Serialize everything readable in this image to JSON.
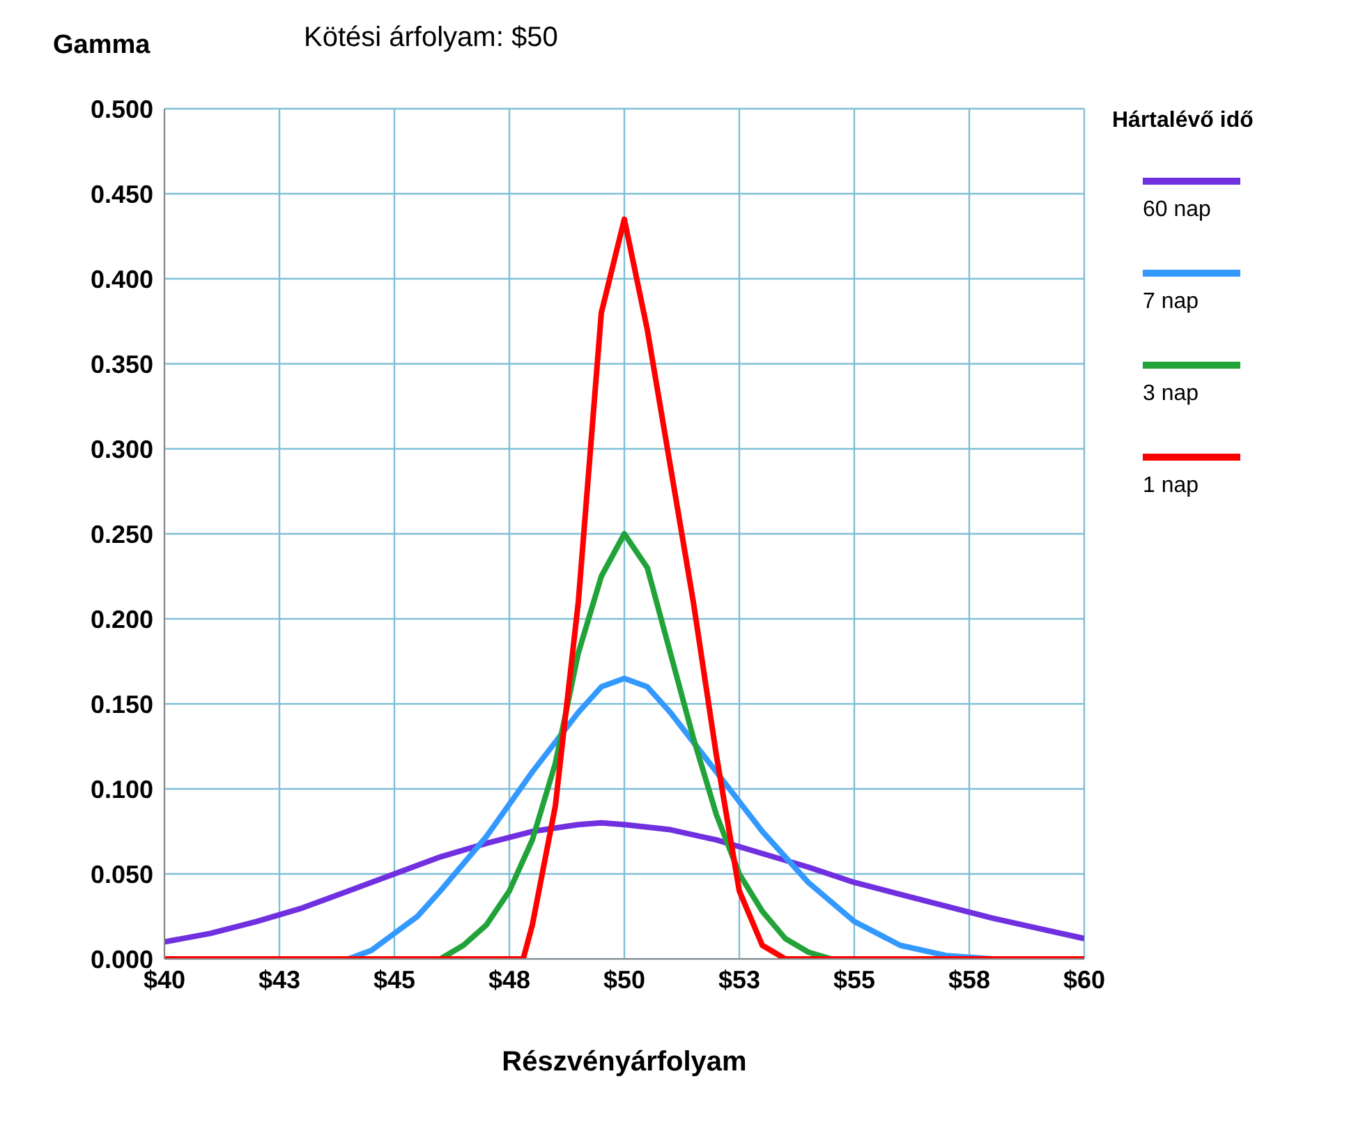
{
  "chart_data": {
    "type": "line",
    "title": "Kötési árfolyam: $50",
    "ylabel": "Gamma",
    "xlabel": "Részvényárfolyam",
    "legend_title": "Hártalévő idő",
    "legend": "right",
    "grid": true,
    "marker": "none",
    "line_style": "solid",
    "xlim": [
      40,
      60
    ],
    "xticks": [
      {
        "value": 40,
        "label": "$40"
      },
      {
        "value": 42.5,
        "label": "$43"
      },
      {
        "value": 45,
        "label": "$45"
      },
      {
        "value": 47.5,
        "label": "$48"
      },
      {
        "value": 50,
        "label": "$50"
      },
      {
        "value": 52.5,
        "label": "$53"
      },
      {
        "value": 55,
        "label": "$55"
      },
      {
        "value": 57.5,
        "label": "$58"
      },
      {
        "value": 60,
        "label": "$60"
      }
    ],
    "ylim": [
      0,
      0.5
    ],
    "yticks": [
      {
        "value": 0,
        "label": "0.000"
      },
      {
        "value": 0.05,
        "label": "0.050"
      },
      {
        "value": 0.1,
        "label": "0.100"
      },
      {
        "value": 0.15,
        "label": "0.150"
      },
      {
        "value": 0.2,
        "label": "0.200"
      },
      {
        "value": 0.25,
        "label": "0.250"
      },
      {
        "value": 0.3,
        "label": "0.300"
      },
      {
        "value": 0.35,
        "label": "0.350"
      },
      {
        "value": 0.4,
        "label": "0.400"
      },
      {
        "value": 0.45,
        "label": "0.450"
      },
      {
        "value": 0.5,
        "label": "0.500"
      }
    ],
    "series": [
      {
        "name": "60 nap",
        "color": "#7030e0",
        "x": [
          40,
          41,
          42,
          43,
          44,
          45,
          46,
          47,
          48,
          49,
          49.5,
          50,
          51,
          52,
          53,
          54,
          55,
          56,
          57,
          58,
          59,
          60
        ],
        "values": [
          0.01,
          0.015,
          0.022,
          0.03,
          0.04,
          0.05,
          0.06,
          0.068,
          0.075,
          0.079,
          0.08,
          0.079,
          0.076,
          0.07,
          0.062,
          0.054,
          0.045,
          0.038,
          0.031,
          0.024,
          0.018,
          0.012
        ]
      },
      {
        "name": "7 nap",
        "color": "#3399ff",
        "x": [
          40,
          44,
          44.5,
          45,
          45.5,
          46,
          47,
          48,
          49,
          49.5,
          50,
          50.5,
          51,
          52,
          53,
          54,
          55,
          56,
          57,
          58,
          60
        ],
        "values": [
          0,
          0,
          0.005,
          0.015,
          0.025,
          0.04,
          0.072,
          0.11,
          0.145,
          0.16,
          0.165,
          0.16,
          0.145,
          0.11,
          0.075,
          0.045,
          0.022,
          0.008,
          0.002,
          0,
          0
        ]
      },
      {
        "name": "3 nap",
        "color": "#22a33a",
        "x": [
          40,
          46,
          46.5,
          47,
          47.5,
          48,
          48.5,
          49,
          49.5,
          50,
          50.5,
          51,
          51.5,
          52,
          52.5,
          53,
          53.5,
          54,
          54.5,
          60
        ],
        "values": [
          0,
          0,
          0.008,
          0.02,
          0.04,
          0.07,
          0.115,
          0.18,
          0.225,
          0.25,
          0.23,
          0.18,
          0.13,
          0.085,
          0.05,
          0.028,
          0.012,
          0.004,
          0,
          0
        ]
      },
      {
        "name": "1 nap",
        "color": "#ff0000",
        "x": [
          40,
          47.8,
          48,
          48.5,
          49,
          49.5,
          50,
          50.5,
          51,
          51.5,
          52,
          52.5,
          53,
          53.5,
          60
        ],
        "values": [
          0,
          0,
          0.02,
          0.09,
          0.21,
          0.38,
          0.435,
          0.37,
          0.29,
          0.21,
          0.12,
          0.04,
          0.008,
          0,
          0
        ]
      }
    ]
  }
}
